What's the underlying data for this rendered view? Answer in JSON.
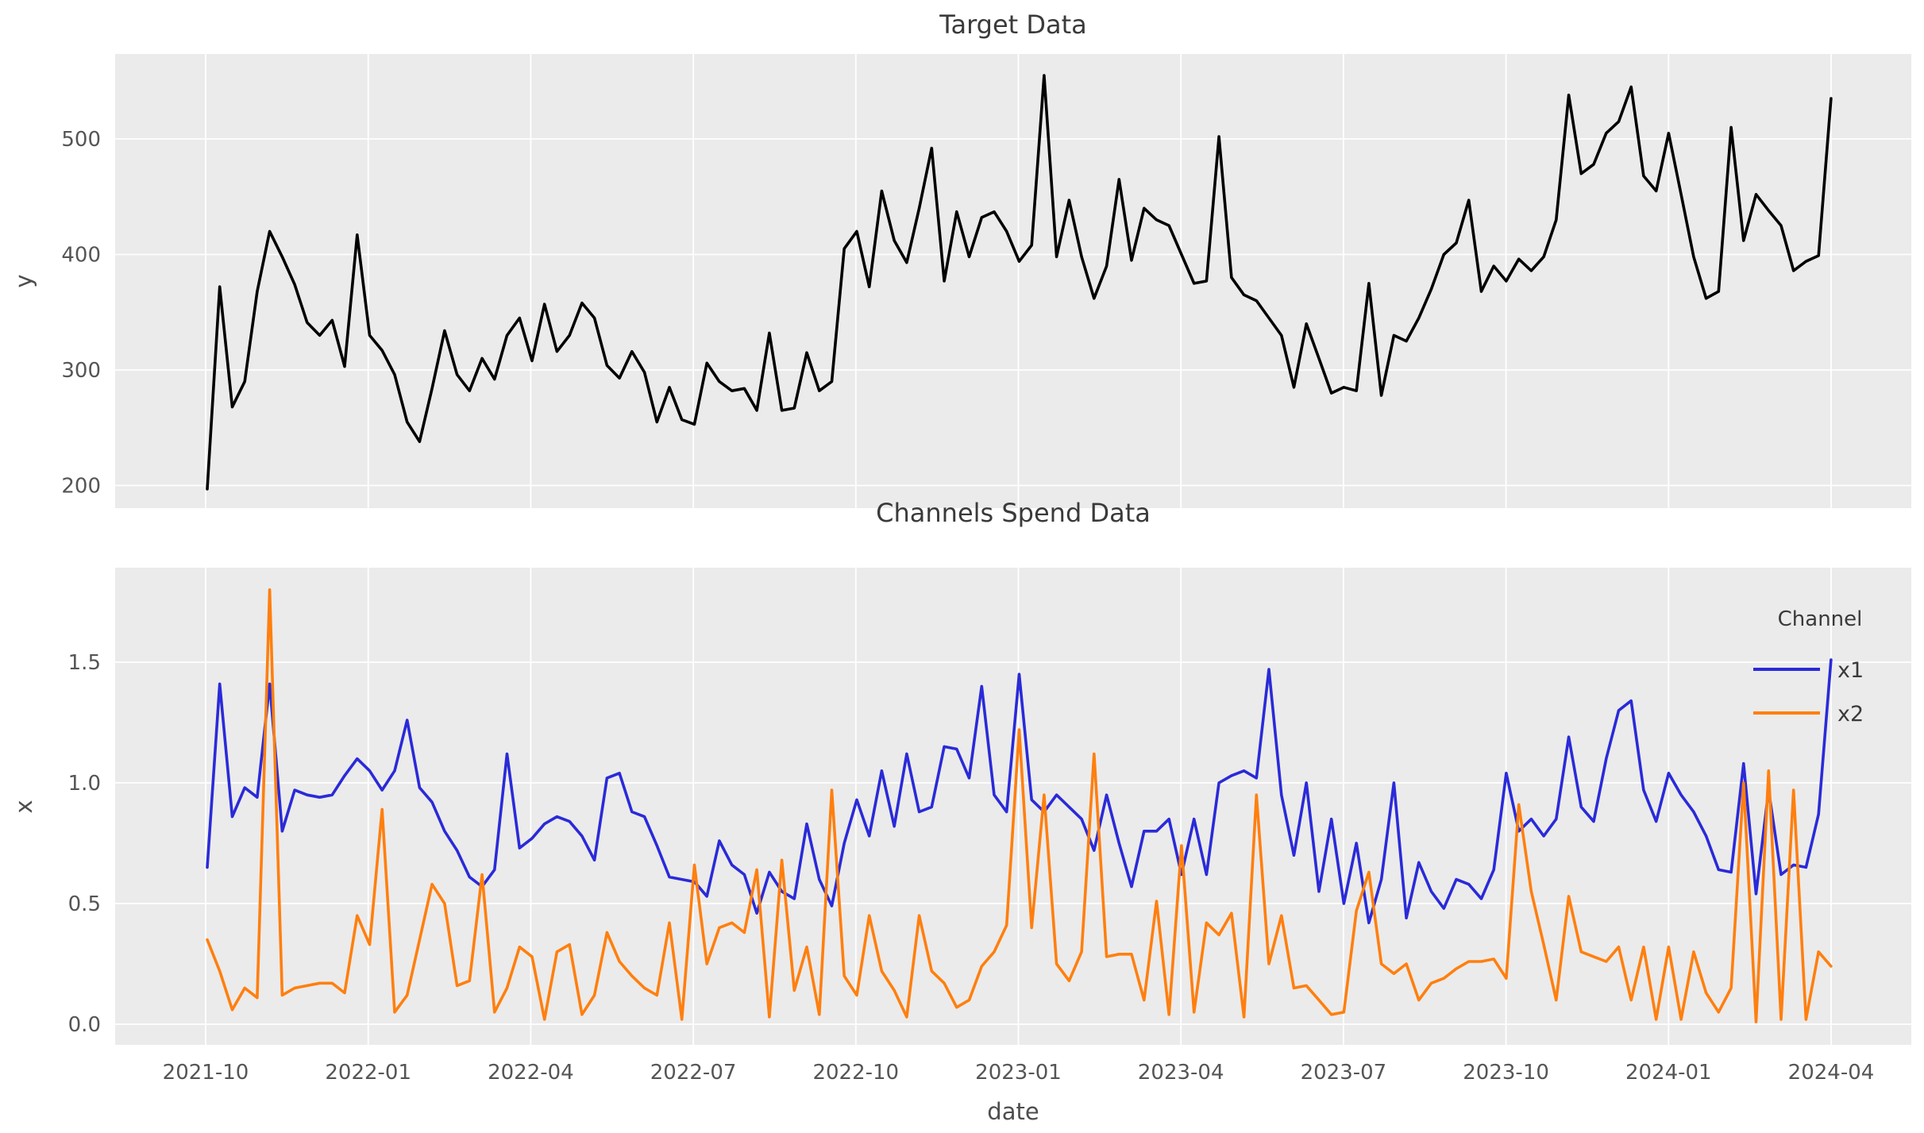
{
  "figure": {
    "background": "#ffffff",
    "plot_background": "#ebebeb",
    "grid_color": "#ffffff"
  },
  "top_chart": {
    "title": "Target Data",
    "ylabel": "y",
    "line_color": "#000000"
  },
  "bottom_chart": {
    "title": "Channels Spend Data",
    "ylabel": "x",
    "xlabel": "date",
    "legend": {
      "title": "Channel",
      "entries": [
        {
          "label": "x1",
          "color": "#2a2ad9"
        },
        {
          "label": "x2",
          "color": "#ff7f0e"
        }
      ]
    }
  },
  "chart_data": [
    {
      "type": "line",
      "title": "Target Data",
      "xlabel": "",
      "ylabel": "y",
      "x_tick_labels": [
        "2021-10",
        "2022-01",
        "2022-04",
        "2022-07",
        "2022-10",
        "2023-01",
        "2023-04",
        "2023-07",
        "2023-10",
        "2024-01",
        "2024-04"
      ],
      "y_ticks": [
        200,
        300,
        400,
        500
      ],
      "ylim": [
        180,
        573
      ],
      "grid": true,
      "start_date": "2021-10-04",
      "frequency": "weekly",
      "series": [
        {
          "name": "y",
          "color": "#000000",
          "values": [
            197,
            372,
            268,
            290,
            368,
            420,
            398,
            374,
            341,
            330,
            343,
            303,
            417,
            330,
            317,
            296,
            255,
            238,
            284,
            334,
            296,
            282,
            310,
            292,
            330,
            345,
            308,
            357,
            316,
            330,
            358,
            345,
            304,
            293,
            316,
            298,
            255,
            285,
            257,
            253,
            306,
            290,
            282,
            284,
            265,
            332,
            265,
            267,
            315,
            282,
            290,
            405,
            420,
            372,
            455,
            412,
            393,
            440,
            492,
            377,
            437,
            398,
            432,
            437,
            420,
            394,
            408,
            555,
            398,
            447,
            398,
            362,
            390,
            465,
            395,
            440,
            430,
            425,
            400,
            375,
            377,
            502,
            380,
            365,
            360,
            345,
            330,
            285,
            340,
            310,
            280,
            285,
            282,
            375,
            278,
            330,
            325,
            345,
            370,
            400,
            410,
            447,
            368,
            390,
            377,
            396,
            386,
            398,
            430,
            538,
            470,
            478,
            505,
            515,
            545,
            468,
            455,
            505,
            452,
            398,
            362,
            368,
            510,
            412,
            452,
            438,
            425,
            386,
            394,
            399,
            535
          ]
        }
      ]
    },
    {
      "type": "line",
      "title": "Channels Spend Data",
      "xlabel": "date",
      "ylabel": "x",
      "x_tick_labels": [
        "2021-10",
        "2022-01",
        "2022-04",
        "2022-07",
        "2022-10",
        "2023-01",
        "2023-04",
        "2023-07",
        "2023-10",
        "2024-01",
        "2024-04"
      ],
      "y_ticks": [
        0.0,
        0.5,
        1.0,
        1.5
      ],
      "ylim": [
        -0.09,
        1.89
      ],
      "grid": true,
      "legend_title": "Channel",
      "legend_position": "upper right",
      "start_date": "2021-10-04",
      "frequency": "weekly",
      "series": [
        {
          "name": "x1",
          "color": "#2a2ad9",
          "values": [
            0.65,
            1.41,
            0.86,
            0.98,
            0.94,
            1.41,
            0.8,
            0.97,
            0.95,
            0.94,
            0.95,
            1.03,
            1.1,
            1.05,
            0.97,
            1.05,
            1.26,
            0.98,
            0.92,
            0.8,
            0.72,
            0.61,
            0.57,
            0.64,
            1.12,
            0.73,
            0.77,
            0.83,
            0.86,
            0.84,
            0.78,
            0.68,
            1.02,
            1.04,
            0.88,
            0.86,
            0.74,
            0.61,
            0.6,
            0.59,
            0.53,
            0.76,
            0.66,
            0.62,
            0.46,
            0.63,
            0.55,
            0.52,
            0.83,
            0.6,
            0.49,
            0.75,
            0.93,
            0.78,
            1.05,
            0.82,
            1.12,
            0.88,
            0.9,
            1.15,
            1.14,
            1.02,
            1.4,
            0.95,
            0.88,
            1.45,
            0.93,
            0.88,
            0.95,
            0.9,
            0.85,
            0.72,
            0.95,
            0.75,
            0.57,
            0.8,
            0.8,
            0.85,
            0.62,
            0.85,
            0.62,
            1.0,
            1.03,
            1.05,
            1.02,
            1.47,
            0.95,
            0.7,
            1.0,
            0.55,
            0.85,
            0.5,
            0.75,
            0.42,
            0.6,
            1.0,
            0.44,
            0.67,
            0.55,
            0.48,
            0.6,
            0.58,
            0.52,
            0.64,
            1.04,
            0.8,
            0.85,
            0.78,
            0.85,
            1.19,
            0.9,
            0.84,
            1.1,
            1.3,
            1.34,
            0.97,
            0.84,
            1.04,
            0.95,
            0.88,
            0.78,
            0.64,
            0.63,
            1.08,
            0.54,
            0.97,
            0.62,
            0.66,
            0.65,
            0.87,
            1.51
          ]
        },
        {
          "name": "x2",
          "color": "#ff7f0e",
          "values": [
            0.35,
            0.22,
            0.06,
            0.15,
            0.11,
            1.8,
            0.12,
            0.15,
            0.16,
            0.17,
            0.17,
            0.13,
            0.45,
            0.33,
            0.89,
            0.05,
            0.12,
            0.35,
            0.58,
            0.5,
            0.16,
            0.18,
            0.62,
            0.05,
            0.15,
            0.32,
            0.28,
            0.02,
            0.3,
            0.33,
            0.04,
            0.12,
            0.38,
            0.26,
            0.2,
            0.15,
            0.12,
            0.42,
            0.02,
            0.66,
            0.25,
            0.4,
            0.42,
            0.38,
            0.64,
            0.03,
            0.68,
            0.14,
            0.32,
            0.04,
            0.97,
            0.2,
            0.12,
            0.45,
            0.22,
            0.14,
            0.03,
            0.45,
            0.22,
            0.17,
            0.07,
            0.1,
            0.24,
            0.3,
            0.41,
            1.22,
            0.4,
            0.95,
            0.25,
            0.18,
            0.3,
            1.12,
            0.28,
            0.29,
            0.29,
            0.1,
            0.51,
            0.04,
            0.74,
            0.05,
            0.42,
            0.37,
            0.46,
            0.03,
            0.95,
            0.25,
            0.45,
            0.15,
            0.16,
            0.1,
            0.04,
            0.05,
            0.47,
            0.63,
            0.25,
            0.21,
            0.25,
            0.1,
            0.17,
            0.19,
            0.23,
            0.26,
            0.26,
            0.27,
            0.19,
            0.91,
            0.55,
            0.33,
            0.1,
            0.53,
            0.3,
            0.28,
            0.26,
            0.32,
            0.1,
            0.32,
            0.02,
            0.32,
            0.02,
            0.3,
            0.13,
            0.05,
            0.15,
            1.0,
            0.01,
            1.05,
            0.02,
            0.97,
            0.02,
            0.3,
            0.24
          ]
        }
      ]
    }
  ]
}
